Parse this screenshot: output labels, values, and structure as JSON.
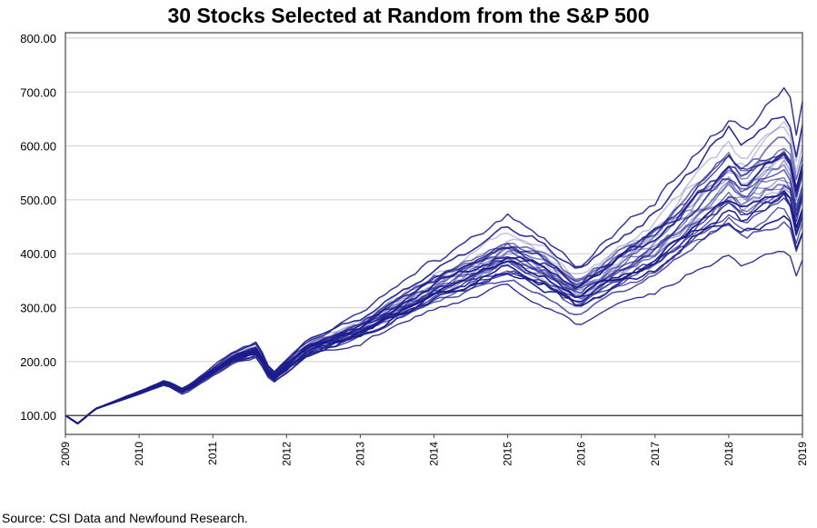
{
  "chart_data": {
    "type": "line",
    "title": "30 Stocks Selected at Random from the S&P 500",
    "source": "Source: CSI Data and Newfound Research.",
    "xlabel": "",
    "ylabel": "",
    "x_ticks": [
      "2009",
      "2010",
      "2011",
      "2012",
      "2013",
      "2014",
      "2015",
      "2016",
      "2017",
      "2018",
      "2019"
    ],
    "y_ticks": [
      "100.00",
      "200.00",
      "300.00",
      "400.00",
      "500.00",
      "600.00",
      "700.00",
      "800.00"
    ],
    "xlim": [
      2009,
      2019
    ],
    "ylim": [
      65,
      810
    ],
    "baseline": 100,
    "grid": true,
    "legend": "none",
    "line_color": "#1c1c8c",
    "anchor_years": [
      2009.0,
      2009.17,
      2009.4,
      2010.0,
      2010.35,
      2010.6,
      2011.3,
      2011.6,
      2011.8,
      2012.3,
      2013.0,
      2014.0,
      2015.0,
      2015.5,
      2015.95,
      2016.1,
      2017.0,
      2018.0,
      2018.2,
      2018.8,
      2018.95,
      2019.0
    ],
    "index_path": [
      100,
      85,
      112,
      142,
      162,
      145,
      210,
      222,
      170,
      228,
      262,
      340,
      400,
      375,
      330,
      345,
      420,
      540,
      515,
      570,
      475,
      540
    ],
    "stock_end_values": [
      680,
      640,
      610,
      600,
      590,
      575,
      570,
      565,
      560,
      555,
      550,
      545,
      540,
      535,
      530,
      525,
      520,
      515,
      510,
      505,
      500,
      495,
      490,
      485,
      480,
      470,
      460,
      450,
      440,
      390
    ]
  }
}
